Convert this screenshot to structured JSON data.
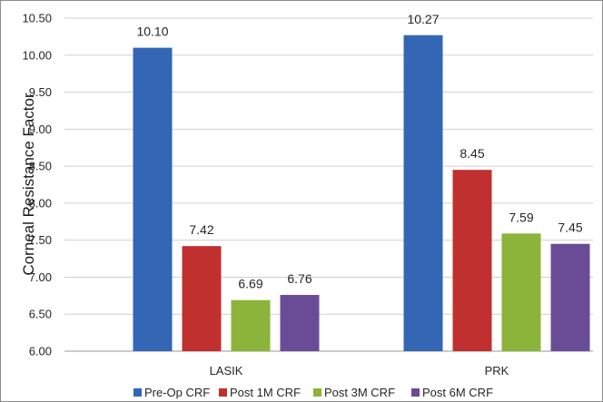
{
  "chart_data": {
    "type": "bar",
    "title": "",
    "xlabel": "",
    "ylabel": "Corneal Resistance Factor",
    "categories": [
      "LASIK",
      "PRK"
    ],
    "series": [
      {
        "name": "Pre-Op CRF",
        "values": [
          10.1,
          10.27
        ],
        "labels": [
          "10.10",
          "10.27"
        ],
        "color": "#3366b4"
      },
      {
        "name": "Post 1M CRF",
        "values": [
          7.42,
          8.45
        ],
        "labels": [
          "7.42",
          "8.45"
        ],
        "color": "#c0302f"
      },
      {
        "name": "Post 3M CRF",
        "values": [
          6.69,
          7.59
        ],
        "labels": [
          "6.69",
          "7.59"
        ],
        "color": "#8cb33a"
      },
      {
        "name": "Post 6M CRF",
        "values": [
          6.76,
          7.45
        ],
        "labels": [
          "6.76",
          "7.45"
        ],
        "color": "#6a4c96"
      }
    ],
    "ylim": [
      6.0,
      10.5
    ],
    "yticks": [
      "6.00",
      "6.50",
      "7.00",
      "7.50",
      "8.00",
      "8.50",
      "9.00",
      "9.50",
      "10.00",
      "10.50"
    ],
    "grid": true,
    "legend": "bottom"
  }
}
